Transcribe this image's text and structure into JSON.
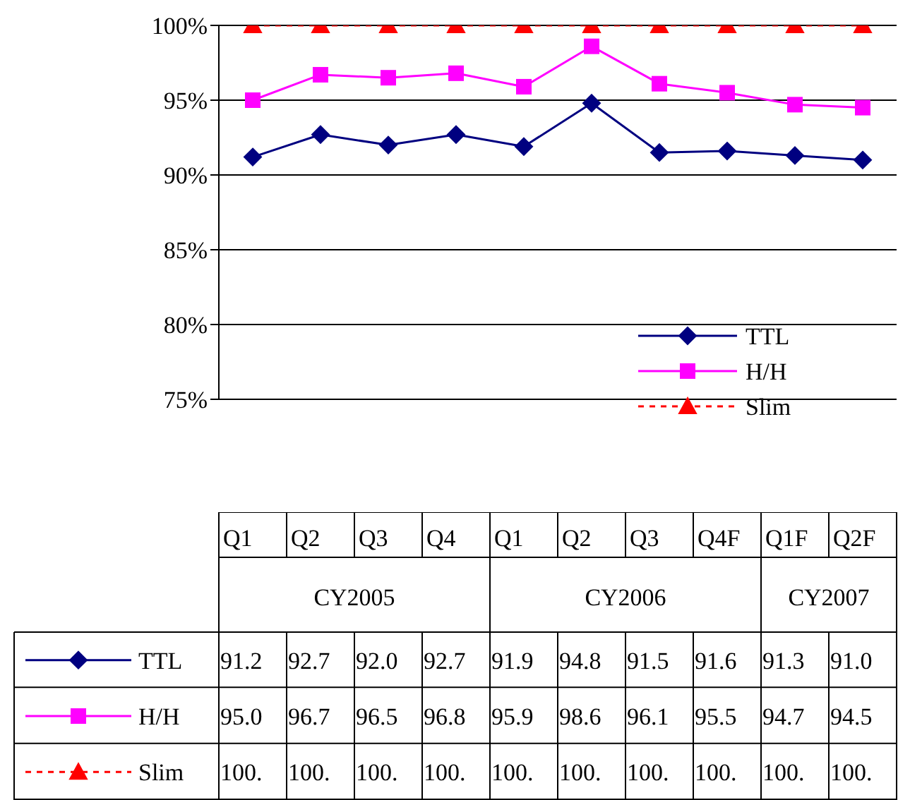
{
  "chart_data": {
    "type": "line",
    "categories": [
      "Q1",
      "Q2",
      "Q3",
      "Q4",
      "Q1",
      "Q2",
      "Q3",
      "Q4F",
      "Q1F",
      "Q2F"
    ],
    "annotations": [
      "CY2005",
      "CY2006",
      "CY2007"
    ],
    "series": [
      {
        "name": "TTL",
        "color": "#000080",
        "marker": "diamond",
        "line_style": "solid",
        "values": [
          91.2,
          92.7,
          92.0,
          92.7,
          91.9,
          94.8,
          91.5,
          91.6,
          91.3,
          91.0
        ],
        "value_labels": [
          "91.2",
          "92.7",
          "92.0",
          "92.7",
          "91.9",
          "94.8",
          "91.5",
          "91.6",
          "91.3",
          "91.0"
        ]
      },
      {
        "name": "H/H",
        "color": "#ff00ff",
        "marker": "square",
        "line_style": "solid",
        "values": [
          95.0,
          96.7,
          96.5,
          96.8,
          95.9,
          98.6,
          96.1,
          95.5,
          94.7,
          94.5
        ],
        "value_labels": [
          "95.0",
          "96.7",
          "96.5",
          "96.8",
          "95.9",
          "98.6",
          "96.1",
          "95.5",
          "94.7",
          "94.5"
        ]
      },
      {
        "name": "Slim",
        "color": "#ff0000",
        "marker": "triangle",
        "line_style": "dashed",
        "values": [
          100,
          100,
          100,
          100,
          100,
          100,
          100,
          100,
          100,
          100
        ],
        "value_labels": [
          "100.",
          "100.",
          "100.",
          "100.",
          "100.",
          "100.",
          "100.",
          "100.",
          "100.",
          "100."
        ]
      }
    ],
    "ylim": [
      75,
      100
    ],
    "yticks": [
      {
        "value": 75,
        "label": "75%"
      },
      {
        "value": 80,
        "label": "80%"
      },
      {
        "value": 85,
        "label": "85%"
      },
      {
        "value": 90,
        "label": "90%"
      },
      {
        "value": 95,
        "label": "95%"
      },
      {
        "value": 100,
        "label": "100%"
      }
    ],
    "grid": "y",
    "legend": "right"
  }
}
